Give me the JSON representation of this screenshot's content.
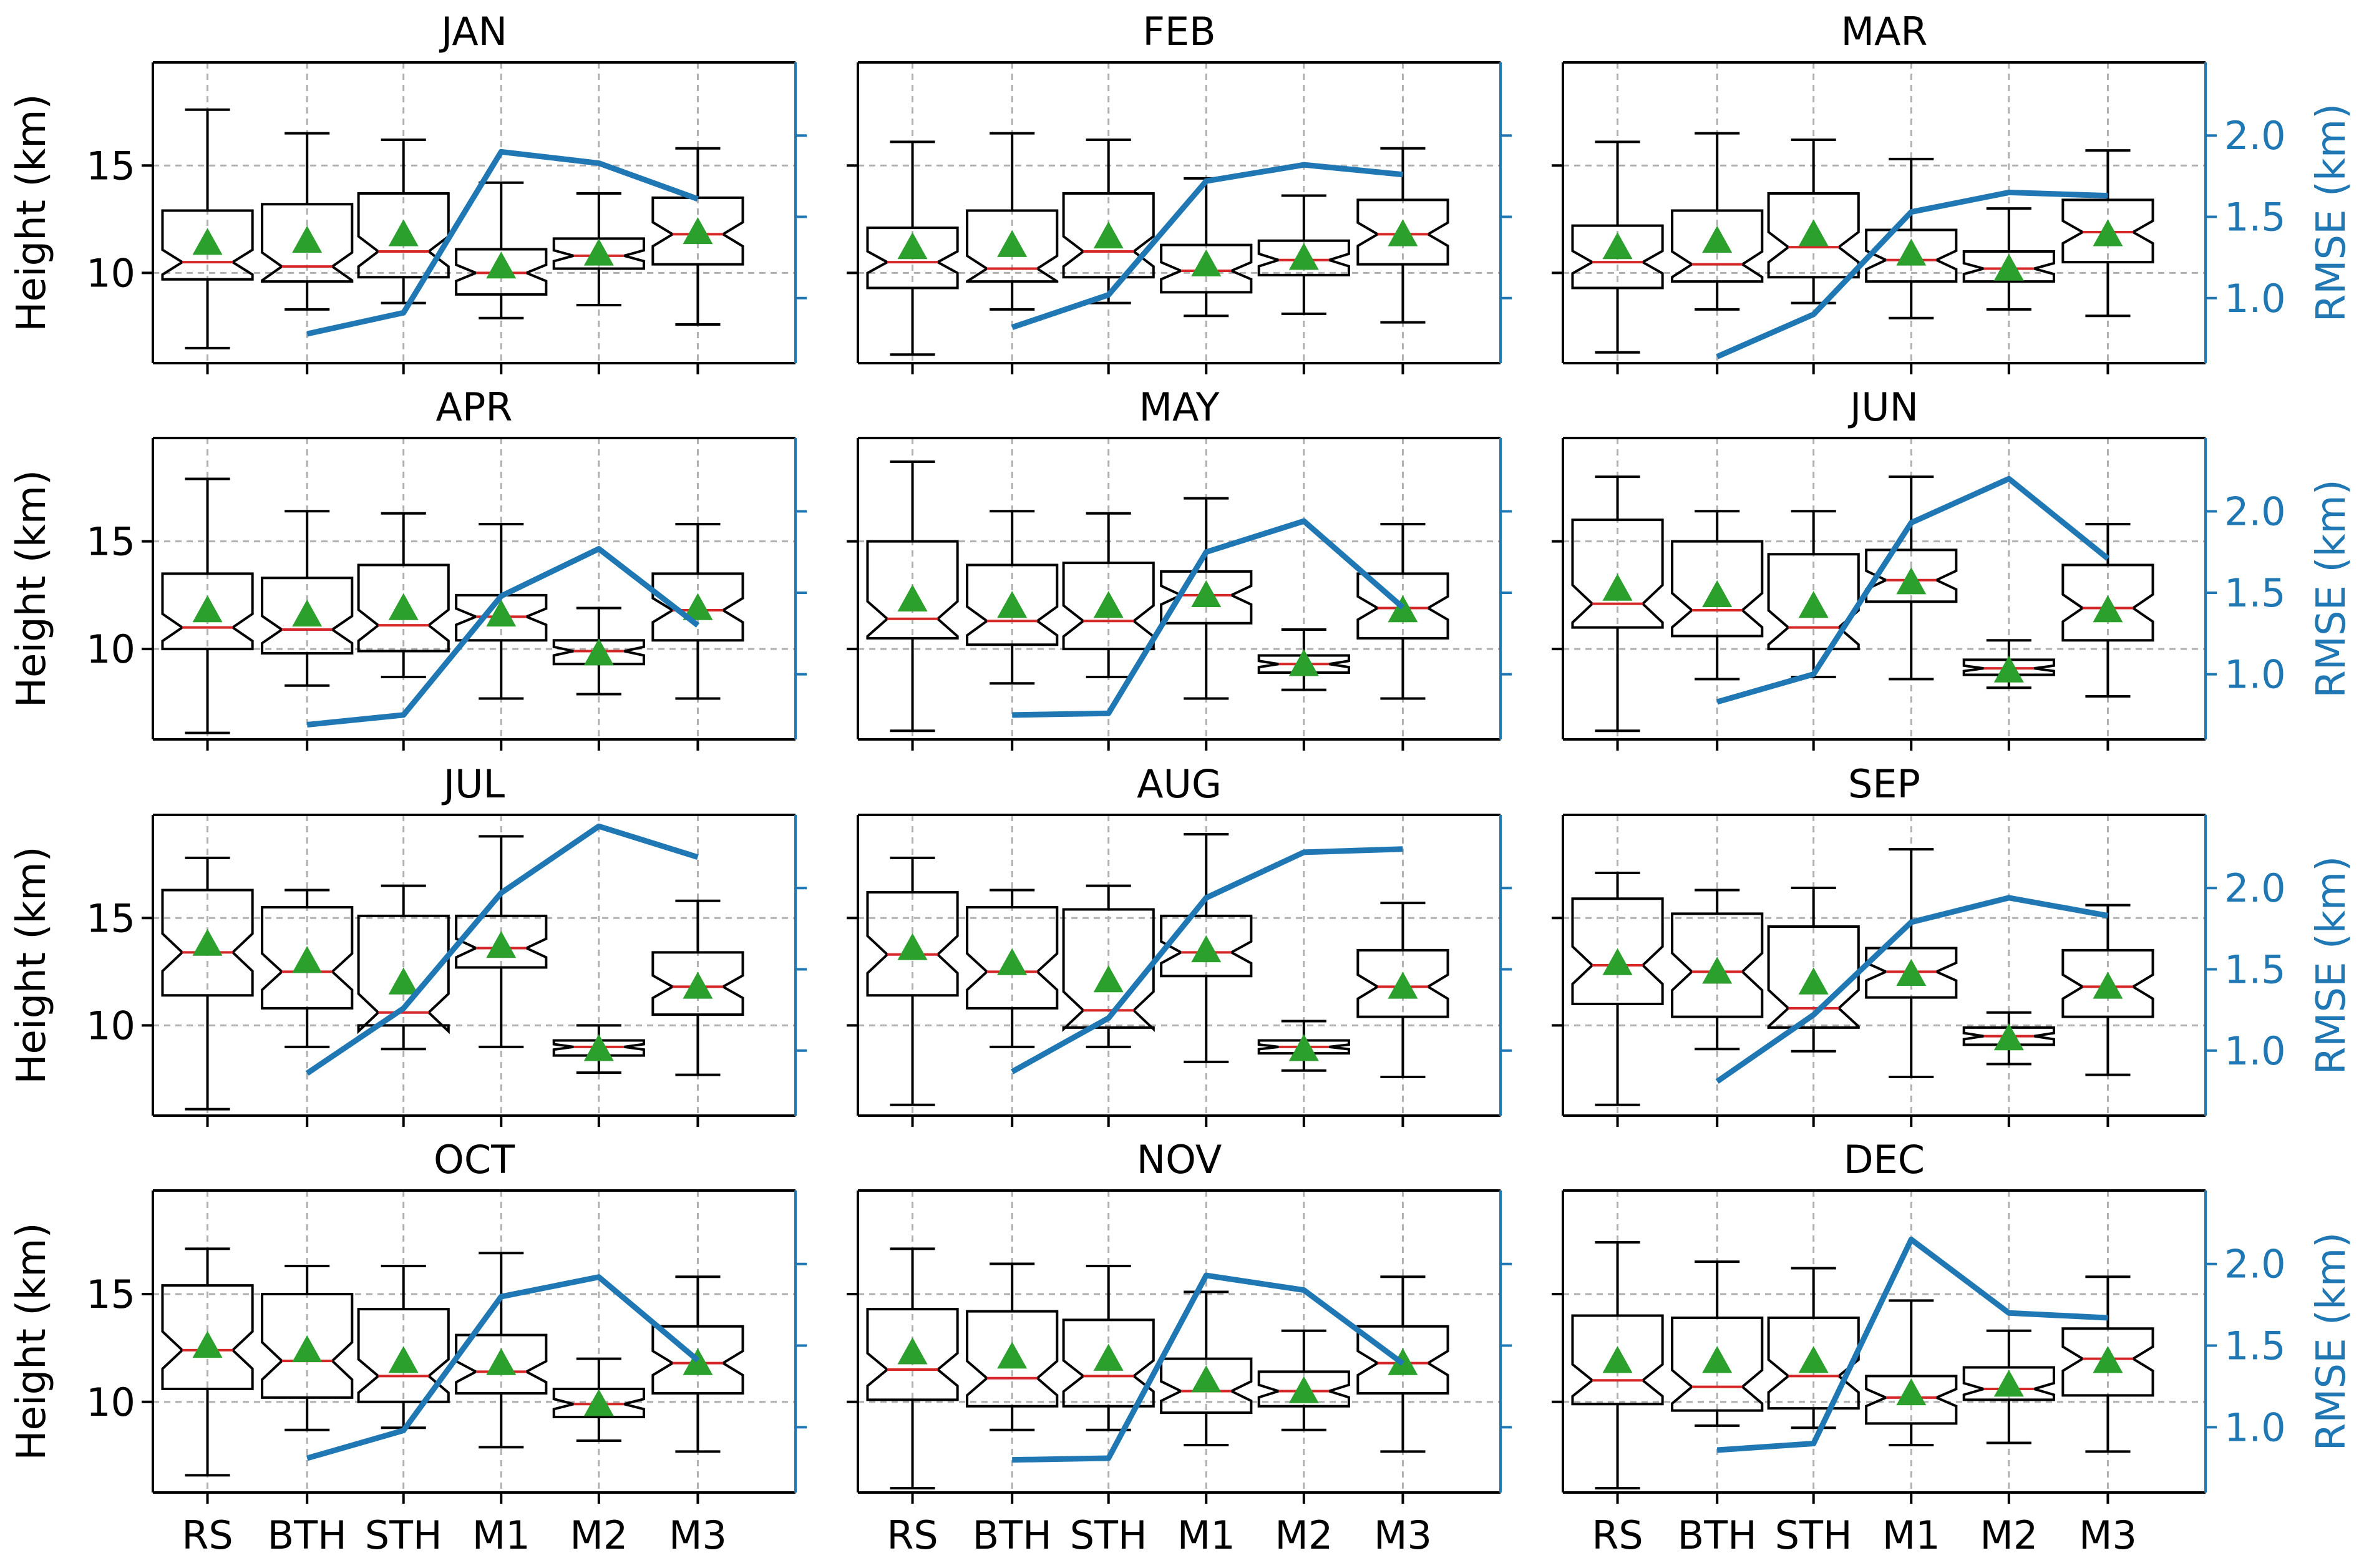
{
  "colors": {
    "rmse_line": "#1f77b4",
    "mean_marker": "#2ca02c",
    "median_line": "#d62728",
    "box": "#000000",
    "grid": "#b0b0b0"
  },
  "chart_data": {
    "type": "boxplot-with-line",
    "categories": [
      "RS",
      "BTH",
      "STH",
      "M1",
      "M2",
      "M3"
    ],
    "left_axis": {
      "label": "Height (km)",
      "range": [
        5.8,
        19.8
      ],
      "ticks": [
        10,
        15
      ],
      "tick_labels": [
        "10",
        "15"
      ]
    },
    "right_axis": {
      "label": "RMSE (km)",
      "range": [
        0.6,
        2.45
      ],
      "ticks": [
        1.0,
        1.5,
        2.0
      ],
      "tick_labels": [
        "1.0",
        "1.5",
        "2.0"
      ]
    },
    "grid": true,
    "panels": [
      {
        "title": "JAN",
        "boxes": [
          {
            "min": 6.5,
            "q1": 9.7,
            "median": 10.5,
            "q3": 12.9,
            "max": 17.6,
            "mean": 11.4
          },
          {
            "min": 8.3,
            "q1": 9.6,
            "median": 10.3,
            "q3": 13.2,
            "max": 16.5,
            "mean": 11.5
          },
          {
            "min": 8.6,
            "q1": 9.8,
            "median": 11.0,
            "q3": 13.7,
            "max": 16.2,
            "mean": 11.8
          },
          {
            "min": 7.9,
            "q1": 9.0,
            "median": 10.0,
            "q3": 11.1,
            "max": 14.2,
            "mean": 10.3
          },
          {
            "min": 8.5,
            "q1": 10.2,
            "median": 10.8,
            "q3": 11.6,
            "max": 13.7,
            "mean": 10.9
          },
          {
            "min": 7.6,
            "q1": 10.4,
            "median": 11.8,
            "q3": 13.5,
            "max": 15.8,
            "mean": 11.9
          }
        ],
        "rmse": [
          null,
          0.78,
          0.91,
          1.9,
          1.83,
          1.61
        ]
      },
      {
        "title": "FEB",
        "boxes": [
          {
            "min": 6.2,
            "q1": 9.3,
            "median": 10.5,
            "q3": 12.1,
            "max": 16.1,
            "mean": 11.2
          },
          {
            "min": 8.3,
            "q1": 9.6,
            "median": 10.2,
            "q3": 12.9,
            "max": 16.5,
            "mean": 11.3
          },
          {
            "min": 8.6,
            "q1": 9.8,
            "median": 11.0,
            "q3": 13.7,
            "max": 16.2,
            "mean": 11.7
          },
          {
            "min": 8.0,
            "q1": 9.1,
            "median": 10.1,
            "q3": 11.3,
            "max": 14.4,
            "mean": 10.4
          },
          {
            "min": 8.1,
            "q1": 9.9,
            "median": 10.6,
            "q3": 11.5,
            "max": 13.6,
            "mean": 10.7
          },
          {
            "min": 7.7,
            "q1": 10.4,
            "median": 11.8,
            "q3": 13.4,
            "max": 15.8,
            "mean": 11.8
          }
        ],
        "rmse": [
          null,
          0.82,
          1.02,
          1.72,
          1.82,
          1.76
        ]
      },
      {
        "title": "MAR",
        "boxes": [
          {
            "min": 6.3,
            "q1": 9.3,
            "median": 10.5,
            "q3": 12.2,
            "max": 16.1,
            "mean": 11.2
          },
          {
            "min": 8.3,
            "q1": 9.6,
            "median": 10.4,
            "q3": 12.9,
            "max": 16.5,
            "mean": 11.5
          },
          {
            "min": 8.6,
            "q1": 9.8,
            "median": 11.2,
            "q3": 13.7,
            "max": 16.2,
            "mean": 11.8
          },
          {
            "min": 7.9,
            "q1": 9.6,
            "median": 10.6,
            "q3": 12.0,
            "max": 15.3,
            "mean": 10.9
          },
          {
            "min": 8.3,
            "q1": 9.6,
            "median": 10.2,
            "q3": 11.0,
            "max": 13.0,
            "mean": 10.2
          },
          {
            "min": 8.0,
            "q1": 10.5,
            "median": 11.9,
            "q3": 13.4,
            "max": 15.7,
            "mean": 11.8
          }
        ],
        "rmse": [
          null,
          0.64,
          0.9,
          1.53,
          1.65,
          1.63
        ]
      },
      {
        "title": "APR",
        "boxes": [
          {
            "min": 6.1,
            "q1": 10.0,
            "median": 11.0,
            "q3": 13.5,
            "max": 17.9,
            "mean": 11.8
          },
          {
            "min": 8.3,
            "q1": 9.8,
            "median": 10.9,
            "q3": 13.3,
            "max": 16.4,
            "mean": 11.6
          },
          {
            "min": 8.7,
            "q1": 9.9,
            "median": 11.1,
            "q3": 13.9,
            "max": 16.3,
            "mean": 11.9
          },
          {
            "min": 7.7,
            "q1": 10.4,
            "median": 11.5,
            "q3": 12.5,
            "max": 15.8,
            "mean": 11.6
          },
          {
            "min": 7.9,
            "q1": 9.3,
            "median": 9.9,
            "q3": 10.4,
            "max": 11.9,
            "mean": 9.8
          },
          {
            "min": 7.7,
            "q1": 10.4,
            "median": 11.8,
            "q3": 13.5,
            "max": 15.8,
            "mean": 11.9
          }
        ],
        "rmse": [
          null,
          0.69,
          0.75,
          1.48,
          1.77,
          1.3
        ]
      },
      {
        "title": "MAY",
        "boxes": [
          {
            "min": 6.2,
            "q1": 10.5,
            "median": 11.4,
            "q3": 15.0,
            "max": 18.7,
            "mean": 12.3
          },
          {
            "min": 8.4,
            "q1": 10.2,
            "median": 11.3,
            "q3": 13.9,
            "max": 16.4,
            "mean": 12.0
          },
          {
            "min": 8.7,
            "q1": 10.0,
            "median": 11.3,
            "q3": 14.0,
            "max": 16.3,
            "mean": 12.0
          },
          {
            "min": 7.7,
            "q1": 11.2,
            "median": 12.5,
            "q3": 13.6,
            "max": 17.0,
            "mean": 12.5
          },
          {
            "min": 8.1,
            "q1": 8.9,
            "median": 9.3,
            "q3": 9.7,
            "max": 10.9,
            "mean": 9.3
          },
          {
            "min": 7.7,
            "q1": 10.5,
            "median": 11.9,
            "q3": 13.5,
            "max": 15.8,
            "mean": 11.8
          }
        ],
        "rmse": [
          null,
          0.75,
          0.76,
          1.75,
          1.94,
          1.41
        ]
      },
      {
        "title": "JUN",
        "boxes": [
          {
            "min": 6.2,
            "q1": 11.0,
            "median": 12.1,
            "q3": 16.0,
            "max": 18.0,
            "mean": 12.8
          },
          {
            "min": 8.6,
            "q1": 10.6,
            "median": 11.8,
            "q3": 15.0,
            "max": 16.4,
            "mean": 12.5
          },
          {
            "min": 8.7,
            "q1": 10.0,
            "median": 11.0,
            "q3": 14.4,
            "max": 16.4,
            "mean": 12.0
          },
          {
            "min": 8.6,
            "q1": 12.2,
            "median": 13.2,
            "q3": 14.6,
            "max": 18.0,
            "mean": 13.1
          },
          {
            "min": 8.2,
            "q1": 8.8,
            "median": 9.1,
            "q3": 9.5,
            "max": 10.4,
            "mean": 9.0
          },
          {
            "min": 7.8,
            "q1": 10.4,
            "median": 11.9,
            "q3": 13.9,
            "max": 15.8,
            "mean": 11.8
          }
        ],
        "rmse": [
          null,
          0.83,
          1.0,
          1.93,
          2.2,
          1.71
        ]
      },
      {
        "title": "JUL",
        "boxes": [
          {
            "min": 6.1,
            "q1": 11.4,
            "median": 13.4,
            "q3": 16.3,
            "max": 17.8,
            "mean": 13.8
          },
          {
            "min": 9.0,
            "q1": 10.8,
            "median": 12.5,
            "q3": 15.5,
            "max": 16.3,
            "mean": 13.0
          },
          {
            "min": 8.9,
            "q1": 10.0,
            "median": 10.6,
            "q3": 15.1,
            "max": 16.5,
            "mean": 12.0
          },
          {
            "min": 9.0,
            "q1": 12.7,
            "median": 13.6,
            "q3": 15.1,
            "max": 18.8,
            "mean": 13.7
          },
          {
            "min": 7.8,
            "q1": 8.6,
            "median": 9.0,
            "q3": 9.3,
            "max": 10.0,
            "mean": 8.9
          },
          {
            "min": 7.7,
            "q1": 10.5,
            "median": 11.8,
            "q3": 13.4,
            "max": 15.8,
            "mean": 11.8
          }
        ],
        "rmse": [
          null,
          0.86,
          1.26,
          1.97,
          2.38,
          2.19
        ]
      },
      {
        "title": "AUG",
        "boxes": [
          {
            "min": 6.3,
            "q1": 11.4,
            "median": 13.3,
            "q3": 16.2,
            "max": 17.8,
            "mean": 13.6
          },
          {
            "min": 9.0,
            "q1": 10.8,
            "median": 12.5,
            "q3": 15.5,
            "max": 16.3,
            "mean": 12.9
          },
          {
            "min": 9.0,
            "q1": 9.9,
            "median": 10.7,
            "q3": 15.4,
            "max": 16.5,
            "mean": 12.1
          },
          {
            "min": 8.3,
            "q1": 12.3,
            "median": 13.4,
            "q3": 15.1,
            "max": 18.9,
            "mean": 13.5
          },
          {
            "min": 7.9,
            "q1": 8.7,
            "median": 9.0,
            "q3": 9.3,
            "max": 10.2,
            "mean": 8.9
          },
          {
            "min": 7.6,
            "q1": 10.4,
            "median": 11.8,
            "q3": 13.5,
            "max": 15.7,
            "mean": 11.8
          }
        ],
        "rmse": [
          null,
          0.87,
          1.2,
          1.94,
          2.22,
          2.24
        ]
      },
      {
        "title": "SEP",
        "boxes": [
          {
            "min": 6.3,
            "q1": 11.0,
            "median": 12.8,
            "q3": 15.9,
            "max": 17.1,
            "mean": 12.9
          },
          {
            "min": 8.9,
            "q1": 10.4,
            "median": 12.5,
            "q3": 15.2,
            "max": 16.3,
            "mean": 12.5
          },
          {
            "min": 8.8,
            "q1": 9.9,
            "median": 10.8,
            "q3": 14.6,
            "max": 16.4,
            "mean": 12.0
          },
          {
            "min": 7.6,
            "q1": 11.3,
            "median": 12.5,
            "q3": 13.6,
            "max": 18.2,
            "mean": 12.4
          },
          {
            "min": 8.2,
            "q1": 9.1,
            "median": 9.5,
            "q3": 9.9,
            "max": 10.6,
            "mean": 9.4
          },
          {
            "min": 7.7,
            "q1": 10.4,
            "median": 11.8,
            "q3": 13.5,
            "max": 15.6,
            "mean": 11.8
          }
        ],
        "rmse": [
          null,
          0.81,
          1.22,
          1.79,
          1.94,
          1.83
        ]
      },
      {
        "title": "OCT",
        "boxes": [
          {
            "min": 6.6,
            "q1": 10.6,
            "median": 12.4,
            "q3": 15.4,
            "max": 17.1,
            "mean": 12.6
          },
          {
            "min": 8.7,
            "q1": 10.2,
            "median": 11.9,
            "q3": 15.0,
            "max": 16.3,
            "mean": 12.4
          },
          {
            "min": 8.8,
            "q1": 10.0,
            "median": 11.2,
            "q3": 14.3,
            "max": 16.3,
            "mean": 11.9
          },
          {
            "min": 7.9,
            "q1": 10.4,
            "median": 11.4,
            "q3": 13.1,
            "max": 16.9,
            "mean": 11.8
          },
          {
            "min": 8.2,
            "q1": 9.3,
            "median": 9.9,
            "q3": 10.6,
            "max": 12.0,
            "mean": 9.9
          },
          {
            "min": 7.7,
            "q1": 10.4,
            "median": 11.8,
            "q3": 13.5,
            "max": 15.8,
            "mean": 11.8
          }
        ],
        "rmse": [
          null,
          0.81,
          0.98,
          1.8,
          1.92,
          1.41
        ]
      },
      {
        "title": "NOV",
        "boxes": [
          {
            "min": 6.0,
            "q1": 10.1,
            "median": 11.5,
            "q3": 14.3,
            "max": 17.1,
            "mean": 12.3
          },
          {
            "min": 8.7,
            "q1": 9.8,
            "median": 11.1,
            "q3": 14.2,
            "max": 16.4,
            "mean": 12.1
          },
          {
            "min": 8.7,
            "q1": 9.8,
            "median": 11.2,
            "q3": 13.8,
            "max": 16.3,
            "mean": 12.0
          },
          {
            "min": 8.0,
            "q1": 9.5,
            "median": 10.5,
            "q3": 12.0,
            "max": 15.1,
            "mean": 11.0
          },
          {
            "min": 8.7,
            "q1": 9.8,
            "median": 10.5,
            "q3": 11.4,
            "max": 13.3,
            "mean": 10.5
          },
          {
            "min": 7.7,
            "q1": 10.4,
            "median": 11.8,
            "q3": 13.5,
            "max": 15.8,
            "mean": 11.8
          }
        ],
        "rmse": [
          null,
          0.8,
          0.81,
          1.93,
          1.84,
          1.39
        ]
      },
      {
        "title": "DEC",
        "boxes": [
          {
            "min": 6.0,
            "q1": 9.9,
            "median": 11.0,
            "q3": 14.0,
            "max": 17.4,
            "mean": 11.9
          },
          {
            "min": 8.9,
            "q1": 9.6,
            "median": 10.7,
            "q3": 13.9,
            "max": 16.5,
            "mean": 11.9
          },
          {
            "min": 8.8,
            "q1": 9.7,
            "median": 11.2,
            "q3": 13.9,
            "max": 16.2,
            "mean": 11.9
          },
          {
            "min": 8.0,
            "q1": 9.0,
            "median": 10.2,
            "q3": 11.2,
            "max": 14.7,
            "mean": 10.4
          },
          {
            "min": 8.1,
            "q1": 10.1,
            "median": 10.6,
            "q3": 11.6,
            "max": 13.3,
            "mean": 10.8
          },
          {
            "min": 7.7,
            "q1": 10.3,
            "median": 12.0,
            "q3": 13.4,
            "max": 15.8,
            "mean": 11.9
          }
        ],
        "rmse": [
          null,
          0.86,
          0.9,
          2.15,
          1.7,
          1.67
        ]
      }
    ]
  }
}
